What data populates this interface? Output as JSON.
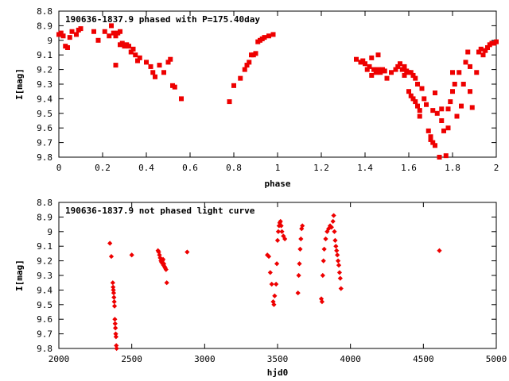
{
  "chart_data": [
    {
      "type": "scatter",
      "title": "190636-1837.9 phased with P=175.40day",
      "xlabel": "phase",
      "ylabel": "I[mag]",
      "xlim": [
        0,
        2
      ],
      "ylim": [
        8.8,
        9.8
      ],
      "y_inverted": true,
      "xticks": [
        "0",
        "0.2",
        "0.4",
        "0.6",
        "0.8",
        "1",
        "1.2",
        "1.4",
        "1.6",
        "1.8",
        "2"
      ],
      "yticks": [
        "8.8",
        "8.9",
        "9",
        "9.1",
        "9.2",
        "9.3",
        "9.4",
        "9.5",
        "9.6",
        "9.7",
        "9.8"
      ],
      "marker": "square",
      "color": "#ee0000",
      "series": [
        {
          "points": [
            [
              0.0,
              8.96
            ],
            [
              0.01,
              8.95
            ],
            [
              0.02,
              8.97
            ],
            [
              0.03,
              9.04
            ],
            [
              0.04,
              9.05
            ],
            [
              0.05,
              8.98
            ],
            [
              0.06,
              8.94
            ],
            [
              0.08,
              8.96
            ],
            [
              0.09,
              8.93
            ],
            [
              0.1,
              8.92
            ],
            [
              0.16,
              8.94
            ],
            [
              0.18,
              9.0
            ],
            [
              0.21,
              8.94
            ],
            [
              0.23,
              8.97
            ],
            [
              0.24,
              8.9
            ],
            [
              0.25,
              8.95
            ],
            [
              0.26,
              9.17
            ],
            [
              0.26,
              8.97
            ],
            [
              0.27,
              8.95
            ],
            [
              0.28,
              8.94
            ],
            [
              0.28,
              9.03
            ],
            [
              0.29,
              9.02
            ],
            [
              0.3,
              9.04
            ],
            [
              0.31,
              9.03
            ],
            [
              0.32,
              9.04
            ],
            [
              0.33,
              9.08
            ],
            [
              0.34,
              9.06
            ],
            [
              0.35,
              9.1
            ],
            [
              0.36,
              9.14
            ],
            [
              0.37,
              9.12
            ],
            [
              0.4,
              9.15
            ],
            [
              0.42,
              9.18
            ],
            [
              0.43,
              9.22
            ],
            [
              0.44,
              9.25
            ],
            [
              0.46,
              9.17
            ],
            [
              0.48,
              9.22
            ],
            [
              0.5,
              9.15
            ],
            [
              0.51,
              9.13
            ],
            [
              0.52,
              9.31
            ],
            [
              0.53,
              9.32
            ],
            [
              0.56,
              9.4
            ],
            [
              0.78,
              9.42
            ],
            [
              0.8,
              9.31
            ],
            [
              0.83,
              9.26
            ],
            [
              0.85,
              9.2
            ],
            [
              0.86,
              9.17
            ],
            [
              0.87,
              9.15
            ],
            [
              0.88,
              9.1
            ],
            [
              0.89,
              9.1
            ],
            [
              0.9,
              9.09
            ],
            [
              0.91,
              9.01
            ],
            [
              0.92,
              9.0
            ],
            [
              0.93,
              8.99
            ],
            [
              0.94,
              8.98
            ],
            [
              0.96,
              8.97
            ],
            [
              0.98,
              8.96
            ],
            [
              1.36,
              9.13
            ],
            [
              1.38,
              9.15
            ],
            [
              1.39,
              9.14
            ],
            [
              1.4,
              9.16
            ],
            [
              1.41,
              9.2
            ],
            [
              1.42,
              9.18
            ],
            [
              1.43,
              9.24
            ],
            [
              1.43,
              9.12
            ],
            [
              1.44,
              9.2
            ],
            [
              1.45,
              9.22
            ],
            [
              1.46,
              9.1
            ],
            [
              1.46,
              9.2
            ],
            [
              1.47,
              9.22
            ],
            [
              1.48,
              9.2
            ],
            [
              1.49,
              9.21
            ],
            [
              1.5,
              9.26
            ],
            [
              1.52,
              9.22
            ],
            [
              1.54,
              9.2
            ],
            [
              1.55,
              9.18
            ],
            [
              1.56,
              9.16
            ],
            [
              1.57,
              9.2
            ],
            [
              1.58,
              9.18
            ],
            [
              1.58,
              9.24
            ],
            [
              1.59,
              9.21
            ],
            [
              1.6,
              9.22
            ],
            [
              1.6,
              9.35
            ],
            [
              1.61,
              9.22
            ],
            [
              1.61,
              9.38
            ],
            [
              1.62,
              9.24
            ],
            [
              1.62,
              9.4
            ],
            [
              1.63,
              9.26
            ],
            [
              1.63,
              9.42
            ],
            [
              1.64,
              9.3
            ],
            [
              1.64,
              9.45
            ],
            [
              1.65,
              9.48
            ],
            [
              1.65,
              9.52
            ],
            [
              1.66,
              9.33
            ],
            [
              1.67,
              9.4
            ],
            [
              1.68,
              9.44
            ],
            [
              1.69,
              9.62
            ],
            [
              1.7,
              9.66
            ],
            [
              1.7,
              9.68
            ],
            [
              1.71,
              9.7
            ],
            [
              1.71,
              9.48
            ],
            [
              1.72,
              9.72
            ],
            [
              1.72,
              9.36
            ],
            [
              1.73,
              9.5
            ],
            [
              1.74,
              9.8
            ],
            [
              1.75,
              9.47
            ],
            [
              1.75,
              9.55
            ],
            [
              1.76,
              9.62
            ],
            [
              1.77,
              9.79
            ],
            [
              1.78,
              9.6
            ],
            [
              1.78,
              9.47
            ],
            [
              1.79,
              9.42
            ],
            [
              1.8,
              9.35
            ],
            [
              1.8,
              9.22
            ],
            [
              1.81,
              9.3
            ],
            [
              1.82,
              9.52
            ],
            [
              1.83,
              9.22
            ],
            [
              1.84,
              9.45
            ],
            [
              1.85,
              9.3
            ],
            [
              1.86,
              9.15
            ],
            [
              1.87,
              9.08
            ],
            [
              1.88,
              9.35
            ],
            [
              1.88,
              9.18
            ],
            [
              1.89,
              9.46
            ],
            [
              1.91,
              9.22
            ],
            [
              1.92,
              9.08
            ],
            [
              1.93,
              9.06
            ],
            [
              1.94,
              9.1
            ],
            [
              1.95,
              9.07
            ],
            [
              1.96,
              9.05
            ],
            [
              1.97,
              9.03
            ],
            [
              1.98,
              9.02
            ],
            [
              1.99,
              9.02
            ],
            [
              2.0,
              9.01
            ]
          ]
        }
      ]
    },
    {
      "type": "scatter",
      "title": "190636-1837.9 not phased light curve",
      "xlabel": "hjd0",
      "ylabel": "I[mag]",
      "xlim": [
        2000,
        5000
      ],
      "ylim": [
        8.8,
        9.8
      ],
      "y_inverted": true,
      "xticks": [
        "2000",
        "2500",
        "3000",
        "3500",
        "4000",
        "4500",
        "5000"
      ],
      "yticks": [
        "8.8",
        "8.9",
        "9",
        "9.1",
        "9.2",
        "9.3",
        "9.4",
        "9.5",
        "9.6",
        "9.7",
        "9.8"
      ],
      "marker": "diamond",
      "color": "#ee0000",
      "series": [
        {
          "points": [
            [
              2350,
              9.08
            ],
            [
              2360,
              9.17
            ],
            [
              2370,
              9.35
            ],
            [
              2372,
              9.38
            ],
            [
              2374,
              9.4
            ],
            [
              2376,
              9.42
            ],
            [
              2378,
              9.45
            ],
            [
              2380,
              9.48
            ],
            [
              2382,
              9.51
            ],
            [
              2384,
              9.6
            ],
            [
              2386,
              9.63
            ],
            [
              2388,
              9.66
            ],
            [
              2390,
              9.7
            ],
            [
              2392,
              9.72
            ],
            [
              2394,
              9.78
            ],
            [
              2396,
              9.8
            ],
            [
              2500,
              9.16
            ],
            [
              2680,
              9.13
            ],
            [
              2685,
              9.14
            ],
            [
              2690,
              9.16
            ],
            [
              2695,
              9.18
            ],
            [
              2700,
              9.2
            ],
            [
              2705,
              9.21
            ],
            [
              2710,
              9.2
            ],
            [
              2712,
              9.22
            ],
            [
              2715,
              9.19
            ],
            [
              2718,
              9.23
            ],
            [
              2720,
              9.22
            ],
            [
              2725,
              9.24
            ],
            [
              2730,
              9.25
            ],
            [
              2735,
              9.26
            ],
            [
              2740,
              9.35
            ],
            [
              2880,
              9.14
            ],
            [
              3430,
              9.16
            ],
            [
              3440,
              9.17
            ],
            [
              3450,
              9.28
            ],
            [
              3460,
              9.36
            ],
            [
              3470,
              9.48
            ],
            [
              3475,
              9.5
            ],
            [
              3480,
              9.44
            ],
            [
              3490,
              9.36
            ],
            [
              3495,
              9.22
            ],
            [
              3500,
              9.06
            ],
            [
              3505,
              9.0
            ],
            [
              3510,
              8.96
            ],
            [
              3515,
              8.94
            ],
            [
              3520,
              8.93
            ],
            [
              3525,
              8.96
            ],
            [
              3530,
              9.0
            ],
            [
              3540,
              9.03
            ],
            [
              3550,
              9.05
            ],
            [
              3640,
              9.42
            ],
            [
              3645,
              9.3
            ],
            [
              3650,
              9.22
            ],
            [
              3655,
              9.12
            ],
            [
              3660,
              9.05
            ],
            [
              3665,
              8.98
            ],
            [
              3670,
              8.96
            ],
            [
              3800,
              9.46
            ],
            [
              3805,
              9.48
            ],
            [
              3810,
              9.3
            ],
            [
              3815,
              9.2
            ],
            [
              3820,
              9.12
            ],
            [
              3830,
              9.05
            ],
            [
              3840,
              9.0
            ],
            [
              3850,
              8.98
            ],
            [
              3860,
              8.96
            ],
            [
              3870,
              8.97
            ],
            [
              3880,
              8.93
            ],
            [
              3885,
              8.89
            ],
            [
              3890,
              9.0
            ],
            [
              3895,
              9.06
            ],
            [
              3900,
              9.1
            ],
            [
              3905,
              9.13
            ],
            [
              3910,
              9.16
            ],
            [
              3915,
              9.2
            ],
            [
              3920,
              9.23
            ],
            [
              3925,
              9.28
            ],
            [
              3930,
              9.32
            ],
            [
              3935,
              9.39
            ],
            [
              4610,
              9.13
            ]
          ]
        }
      ]
    }
  ]
}
